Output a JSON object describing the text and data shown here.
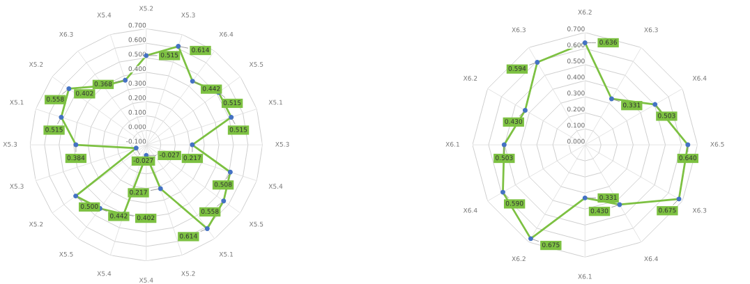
{
  "chart_data": [
    {
      "type": "radar",
      "categories": [
        "X5.2",
        "X5.3",
        "X6.4",
        "X5.5",
        "X5.1",
        "X5.3",
        "X5.4",
        "X5.5",
        "X5.1",
        "X5.2",
        "X5.4",
        "X5.4",
        "X5.5",
        "X5.2",
        "X5.3",
        "X5.3",
        "X5.1",
        "X5.2",
        "X6.3",
        "X5.4"
      ],
      "series": [
        {
          "color": "#7dc142",
          "values": [
            0.515,
            0.614,
            0.442,
            0.515,
            0.515,
            0.217,
            0.508,
            0.558,
            0.614,
            0.217,
            -0.027,
            0.402,
            0.442,
            0.5,
            -0.027,
            0.384,
            0.515,
            0.558,
            0.402,
            0.368
          ],
          "value_labels": [
            "0.515",
            "0.614",
            "0.442",
            "0.515",
            "0.515",
            "0.217",
            "0.508",
            "0.558",
            "0.614",
            "0.217",
            "-0.027",
            "0.402",
            "0.442",
            "0.500",
            "-0.027",
            "0.384",
            "0.515",
            "0.558",
            "0.402",
            "0.368"
          ]
        }
      ],
      "ylim": [
        -0.1,
        0.7
      ],
      "yticks": [
        {
          "value": -0.1,
          "label": "-0.100"
        },
        {
          "value": 0,
          "label": "0.000"
        },
        {
          "value": 0.1,
          "label": "0.100"
        },
        {
          "value": 0.2,
          "label": "0.200"
        },
        {
          "value": 0.3,
          "label": "0.300"
        },
        {
          "value": 0.4,
          "label": "0.400"
        },
        {
          "value": 0.5,
          "label": "0.500"
        },
        {
          "value": 0.6,
          "label": "0.600"
        },
        {
          "value": 0.7,
          "label": "0.700"
        }
      ],
      "grid": true,
      "marker": "circle",
      "data_labels": true
    },
    {
      "type": "radar",
      "categories": [
        "X6.2",
        "X6.3",
        "X6.4",
        "X6.5",
        "X6.3",
        "X6.4",
        "X6.1",
        "X6.2",
        "X6.4",
        "X6.1",
        "X6.2",
        "X6.3"
      ],
      "series": [
        {
          "color": "#7dc142",
          "values": [
            0.636,
            0.331,
            0.503,
            0.64,
            0.675,
            0.43,
            0.331,
            0.675,
            0.59,
            0.503,
            0.43,
            0.594
          ],
          "value_labels": [
            "0.636",
            "0.331",
            "0.503",
            "0.640",
            "0.675",
            "0.430",
            "0.331",
            "0.675",
            "0.590",
            "0.503",
            "0.430",
            "0.594"
          ]
        }
      ],
      "ylim": [
        0,
        0.7
      ],
      "yticks": [
        {
          "value": 0,
          "label": "0.000"
        },
        {
          "value": 0.1,
          "label": "0.100"
        },
        {
          "value": 0.2,
          "label": "0.200"
        },
        {
          "value": 0.3,
          "label": "0.300"
        },
        {
          "value": 0.4,
          "label": "0.400"
        },
        {
          "value": 0.5,
          "label": "0.500"
        },
        {
          "value": 0.6,
          "label": "0.600"
        },
        {
          "value": 0.7,
          "label": "0.700"
        }
      ],
      "grid": true,
      "marker": "circle",
      "data_labels": true
    }
  ]
}
